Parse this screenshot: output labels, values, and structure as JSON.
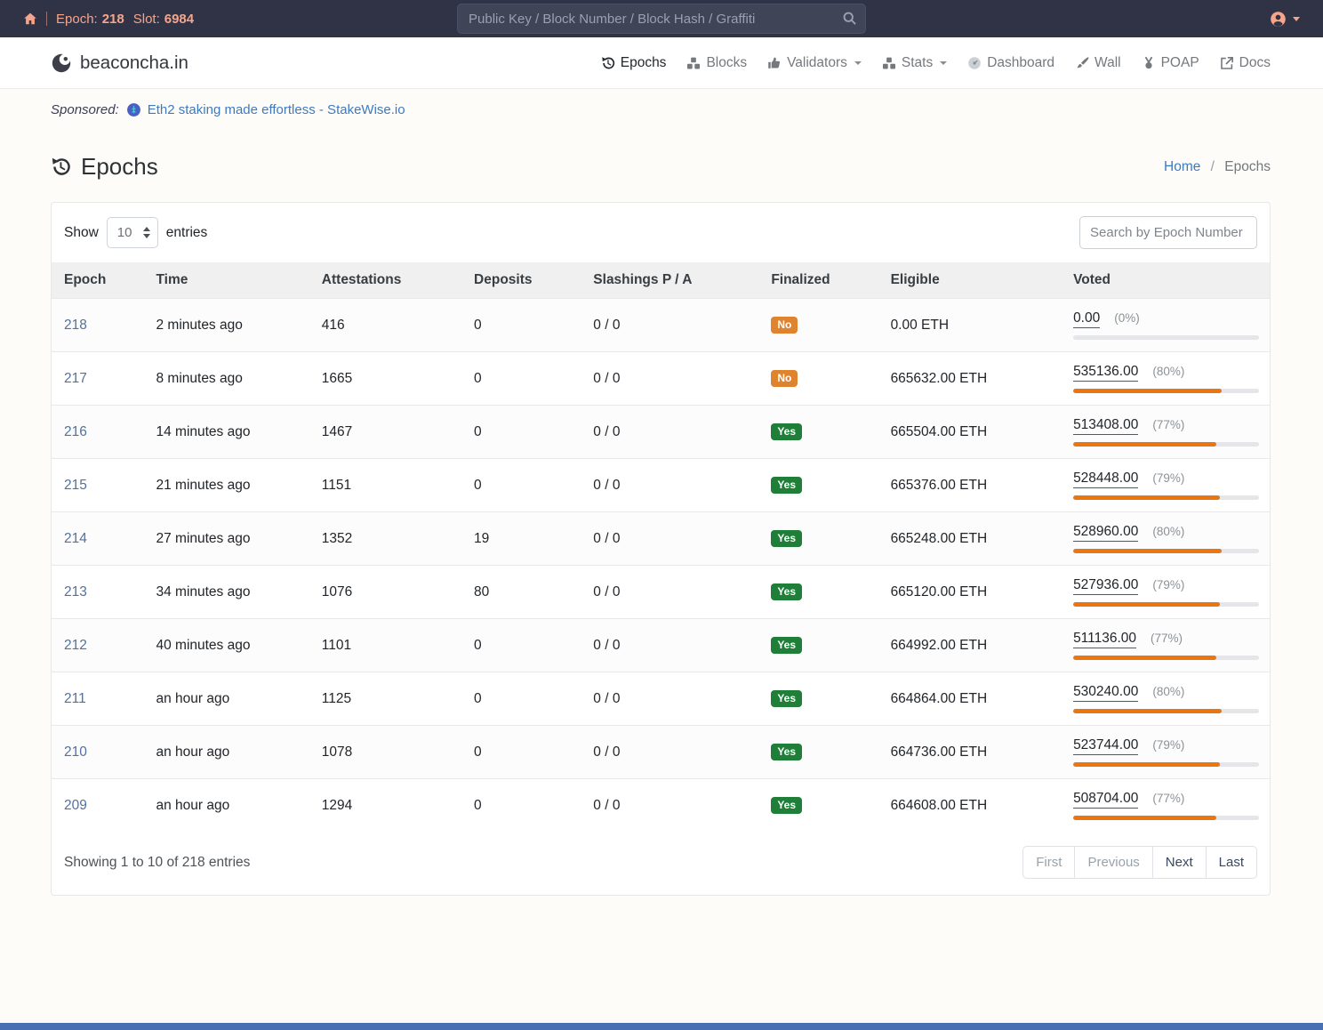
{
  "topbar": {
    "epoch_label": "Epoch:",
    "epoch_value": "218",
    "slot_label": "Slot:",
    "slot_value": "6984",
    "search_placeholder": "Public Key / Block Number / Block Hash / Graffiti"
  },
  "navbar": {
    "brand": "beaconcha.in",
    "items": [
      {
        "label": "Epochs",
        "icon": "history-icon",
        "active": true,
        "caret": false
      },
      {
        "label": "Blocks",
        "icon": "cubes-icon",
        "active": false,
        "caret": false
      },
      {
        "label": "Validators",
        "icon": "thumbs-up-icon",
        "active": false,
        "caret": true
      },
      {
        "label": "Stats",
        "icon": "chart-icon",
        "active": false,
        "caret": true
      },
      {
        "label": "Dashboard",
        "icon": "gauge-icon",
        "active": false,
        "caret": false
      },
      {
        "label": "Wall",
        "icon": "brush-icon",
        "active": false,
        "caret": false
      },
      {
        "label": "POAP",
        "icon": "medal-icon",
        "active": false,
        "caret": false
      },
      {
        "label": "Docs",
        "icon": "external-link-icon",
        "active": false,
        "caret": false
      }
    ]
  },
  "sponsored": {
    "label": "Sponsored:",
    "link": "Eth2 staking made effortless - StakeWise.io"
  },
  "page": {
    "title": "Epochs",
    "breadcrumb": {
      "home": "Home",
      "separator": "/",
      "current": "Epochs"
    }
  },
  "table_controls": {
    "show_label": "Show",
    "page_size": "10",
    "entries_label": "entries",
    "search_placeholder": "Search by Epoch Number"
  },
  "table": {
    "headers": [
      "Epoch",
      "Time",
      "Attestations",
      "Deposits",
      "Slashings P / A",
      "Finalized",
      "Eligible",
      "Voted"
    ],
    "rows": [
      {
        "epoch": "218",
        "time": "2 minutes ago",
        "attestations": "416",
        "deposits": "0",
        "slashings": "0 / 0",
        "finalized": "No",
        "eligible": "0.00 ETH",
        "voted": "0.00",
        "voted_pct": "(0%)",
        "bar_pct": 0
      },
      {
        "epoch": "217",
        "time": "8 minutes ago",
        "attestations": "1665",
        "deposits": "0",
        "slashings": "0 / 0",
        "finalized": "No",
        "eligible": "665632.00 ETH",
        "voted": "535136.00",
        "voted_pct": "(80%)",
        "bar_pct": 80
      },
      {
        "epoch": "216",
        "time": "14 minutes ago",
        "attestations": "1467",
        "deposits": "0",
        "slashings": "0 / 0",
        "finalized": "Yes",
        "eligible": "665504.00 ETH",
        "voted": "513408.00",
        "voted_pct": "(77%)",
        "bar_pct": 77
      },
      {
        "epoch": "215",
        "time": "21 minutes ago",
        "attestations": "1151",
        "deposits": "0",
        "slashings": "0 / 0",
        "finalized": "Yes",
        "eligible": "665376.00 ETH",
        "voted": "528448.00",
        "voted_pct": "(79%)",
        "bar_pct": 79
      },
      {
        "epoch": "214",
        "time": "27 minutes ago",
        "attestations": "1352",
        "deposits": "19",
        "slashings": "0 / 0",
        "finalized": "Yes",
        "eligible": "665248.00 ETH",
        "voted": "528960.00",
        "voted_pct": "(80%)",
        "bar_pct": 80
      },
      {
        "epoch": "213",
        "time": "34 minutes ago",
        "attestations": "1076",
        "deposits": "80",
        "slashings": "0 / 0",
        "finalized": "Yes",
        "eligible": "665120.00 ETH",
        "voted": "527936.00",
        "voted_pct": "(79%)",
        "bar_pct": 79
      },
      {
        "epoch": "212",
        "time": "40 minutes ago",
        "attestations": "1101",
        "deposits": "0",
        "slashings": "0 / 0",
        "finalized": "Yes",
        "eligible": "664992.00 ETH",
        "voted": "511136.00",
        "voted_pct": "(77%)",
        "bar_pct": 77
      },
      {
        "epoch": "211",
        "time": "an hour ago",
        "attestations": "1125",
        "deposits": "0",
        "slashings": "0 / 0",
        "finalized": "Yes",
        "eligible": "664864.00 ETH",
        "voted": "530240.00",
        "voted_pct": "(80%)",
        "bar_pct": 80
      },
      {
        "epoch": "210",
        "time": "an hour ago",
        "attestations": "1078",
        "deposits": "0",
        "slashings": "0 / 0",
        "finalized": "Yes",
        "eligible": "664736.00 ETH",
        "voted": "523744.00",
        "voted_pct": "(79%)",
        "bar_pct": 79
      },
      {
        "epoch": "209",
        "time": "an hour ago",
        "attestations": "1294",
        "deposits": "0",
        "slashings": "0 / 0",
        "finalized": "Yes",
        "eligible": "664608.00 ETH",
        "voted": "508704.00",
        "voted_pct": "(77%)",
        "bar_pct": 77
      }
    ]
  },
  "table_footer": {
    "info": "Showing 1 to 10 of 218 entries",
    "pagination": [
      {
        "label": "First",
        "enabled": false
      },
      {
        "label": "Previous",
        "enabled": false
      },
      {
        "label": "Next",
        "enabled": true
      },
      {
        "label": "Last",
        "enabled": true
      }
    ]
  },
  "colors": {
    "topbar-bg": "#303346",
    "salmon": "#f5a58c",
    "link-blue": "#3e7ac0",
    "warning-badge": "#e0832e",
    "success-badge": "#1f7e38",
    "bar-fill": "#e97613"
  }
}
